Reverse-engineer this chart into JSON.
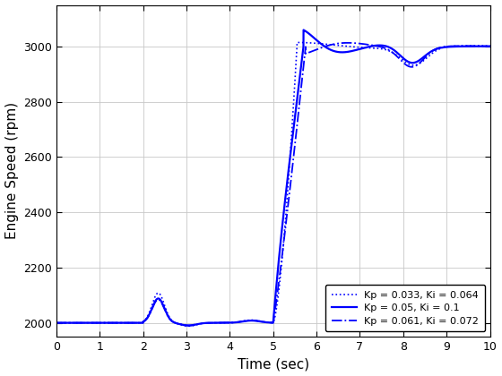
{
  "title": "",
  "xlabel": "Time (sec)",
  "ylabel": "Engine Speed (rpm)",
  "xlim": [
    0,
    10
  ],
  "ylim": [
    1950,
    3150
  ],
  "yticks": [
    2000,
    2200,
    2400,
    2600,
    2800,
    3000
  ],
  "xticks": [
    0,
    1,
    2,
    3,
    4,
    5,
    6,
    7,
    8,
    9,
    10
  ],
  "line_color": "#0000FF",
  "legend_entries": [
    "Kp = 0.033, Ki = 0.064",
    "Kp = 0.05, Ki = 0.1",
    "Kp = 0.061, Ki = 0.072"
  ],
  "line_styles": [
    "dotted",
    "solid",
    "dashdot"
  ],
  "background_color": "#ffffff",
  "grid_color": "#c8c8c8"
}
